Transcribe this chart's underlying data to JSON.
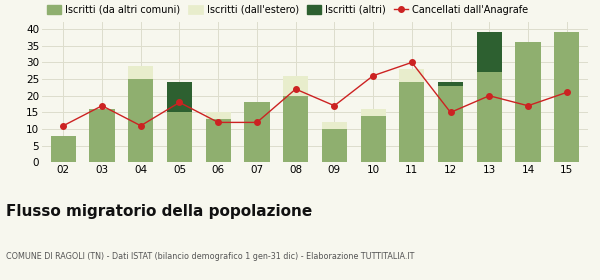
{
  "years": [
    "02",
    "03",
    "04",
    "05",
    "06",
    "07",
    "08",
    "09",
    "10",
    "11",
    "12",
    "13",
    "14",
    "15"
  ],
  "iscritti_altri_comuni": [
    8,
    16,
    25,
    15,
    13,
    18,
    20,
    10,
    14,
    24,
    23,
    27,
    36,
    39
  ],
  "iscritti_estero": [
    0,
    0,
    4,
    0,
    2,
    0,
    6,
    2,
    2,
    4,
    0,
    0,
    0,
    0
  ],
  "iscritti_altri": [
    0,
    0,
    0,
    9,
    0,
    0,
    0,
    0,
    0,
    0,
    1,
    12,
    0,
    0
  ],
  "cancellati": [
    11,
    17,
    11,
    18,
    12,
    12,
    22,
    17,
    26,
    30,
    15,
    20,
    17,
    21
  ],
  "color_altri_comuni": "#8faf6f",
  "color_estero": "#e8edcc",
  "color_altri": "#2d6030",
  "color_cancellati": "#cc2222",
  "title": "Flusso migratorio della popolazione",
  "subtitle": "COMUNE DI RAGOLI (TN) - Dati ISTAT (bilancio demografico 1 gen-31 dic) - Elaborazione TUTTITALIA.IT",
  "legend_labels": [
    "Iscritti (da altri comuni)",
    "Iscritti (dall'estero)",
    "Iscritti (altri)",
    "Cancellati dall'Anagrafe"
  ],
  "ylim": [
    0,
    42
  ],
  "yticks": [
    0,
    5,
    10,
    15,
    20,
    25,
    30,
    35,
    40
  ],
  "background_color": "#f7f7ee",
  "grid_color": "#ddddcc"
}
